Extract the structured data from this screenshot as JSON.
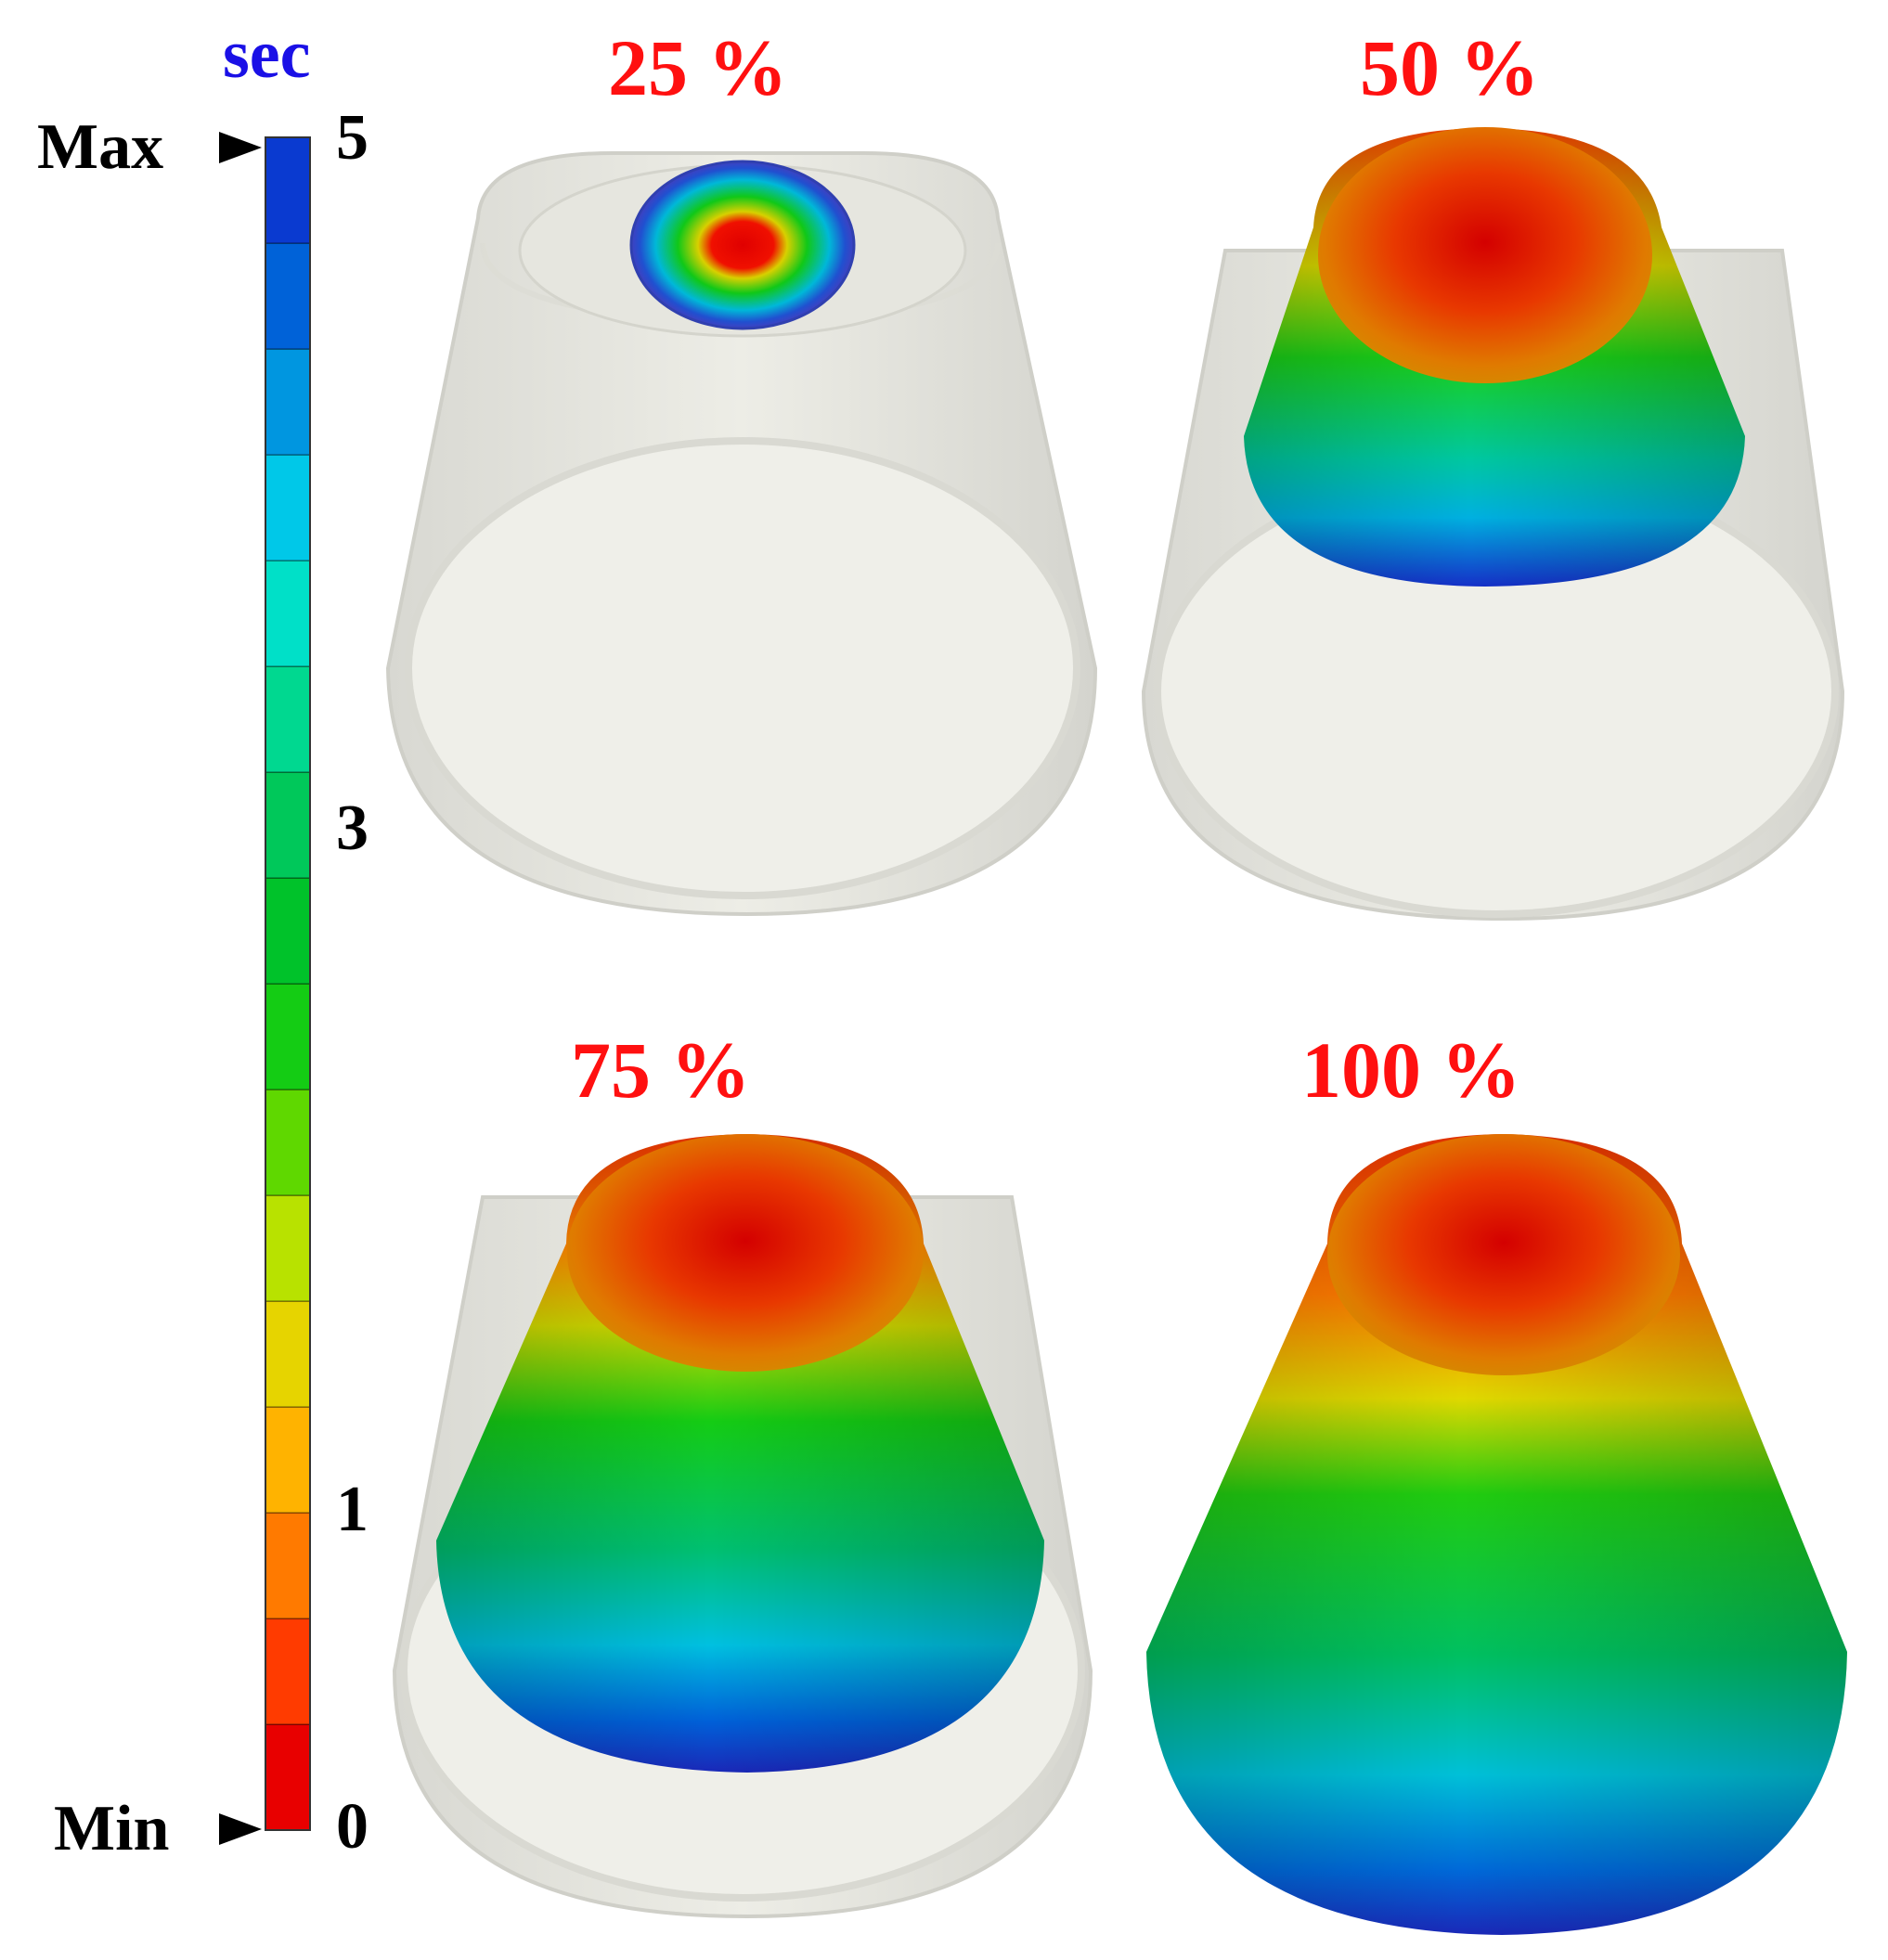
{
  "legend": {
    "unit": "sec",
    "max_label": "Max",
    "min_label": "Min",
    "ticks": [
      "5",
      "3",
      "1",
      "0"
    ],
    "range": [
      0,
      5
    ],
    "colors": [
      "#e80000",
      "#ff3b00",
      "#ff7a00",
      "#ffb300",
      "#e6d400",
      "#b8e200",
      "#5fd800",
      "#14cc14",
      "#00c22a",
      "#00c85a",
      "#00d890",
      "#00e0c8",
      "#00c8e8",
      "#0096e0",
      "#0062d8",
      "#0a3ad0"
    ]
  },
  "panels": [
    {
      "label": "25 %",
      "fill_fraction": 0.25
    },
    {
      "label": "50 %",
      "fill_fraction": 0.5
    },
    {
      "label": "75 %",
      "fill_fraction": 0.75
    },
    {
      "label": "100 %",
      "fill_fraction": 1.0
    }
  ]
}
